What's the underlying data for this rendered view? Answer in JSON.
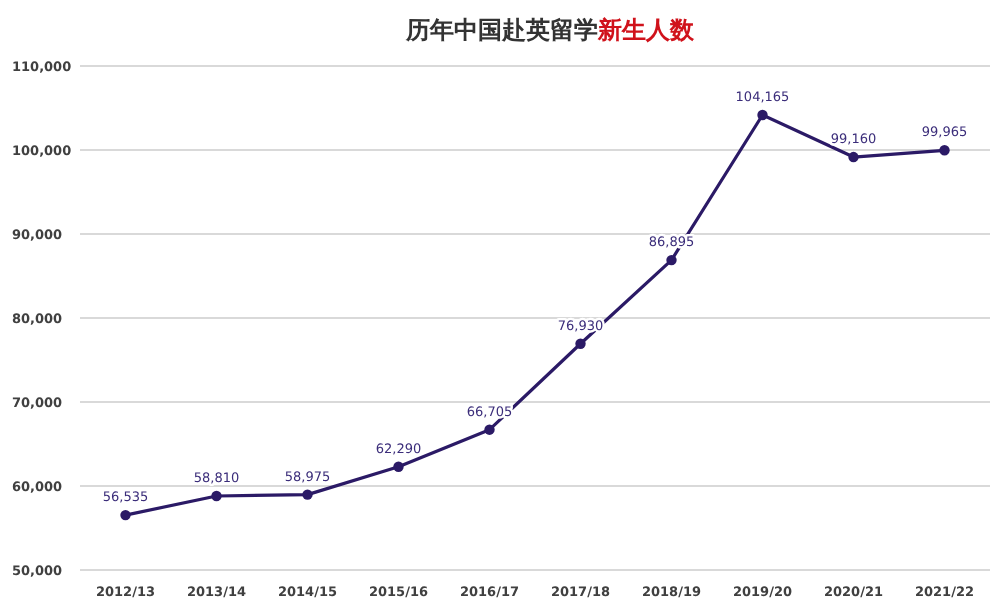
{
  "chart_data": {
    "type": "line",
    "title": "历年中国赴英留学**新生人数**",
    "categories": [
      "2012/13",
      "2013/14",
      "2014/15",
      "2015/16",
      "2016/17",
      "2017/18",
      "2018/19",
      "2019/20",
      "2020/21",
      "2021/22"
    ],
    "series": [
      {
        "color": "#2b1a66",
        "values": [
          56535,
          58810,
          58975,
          62290,
          66705,
          76930,
          86895,
          104165,
          99160,
          99965
        ],
        "value_labels": [
          "56,535",
          "58,810",
          "58,975",
          "62,290",
          "66,705",
          "76,930",
          "86,895",
          "104,165",
          "99,160",
          "99,965"
        ]
      }
    ],
    "ylim": [
      50000,
      110000
    ],
    "yticks": [
      {
        "value": 50000,
        "label": "50,000"
      },
      {
        "value": 60000,
        "label": "60,000"
      },
      {
        "value": 70000,
        "label": "70,000"
      },
      {
        "value": 80000,
        "label": "80,000"
      },
      {
        "value": 90000,
        "label": "90,000"
      },
      {
        "value": 100000,
        "label": "100,000"
      },
      {
        "value": 110000,
        "label": "110,000"
      }
    ],
    "grid": "y",
    "marker": "circle"
  }
}
